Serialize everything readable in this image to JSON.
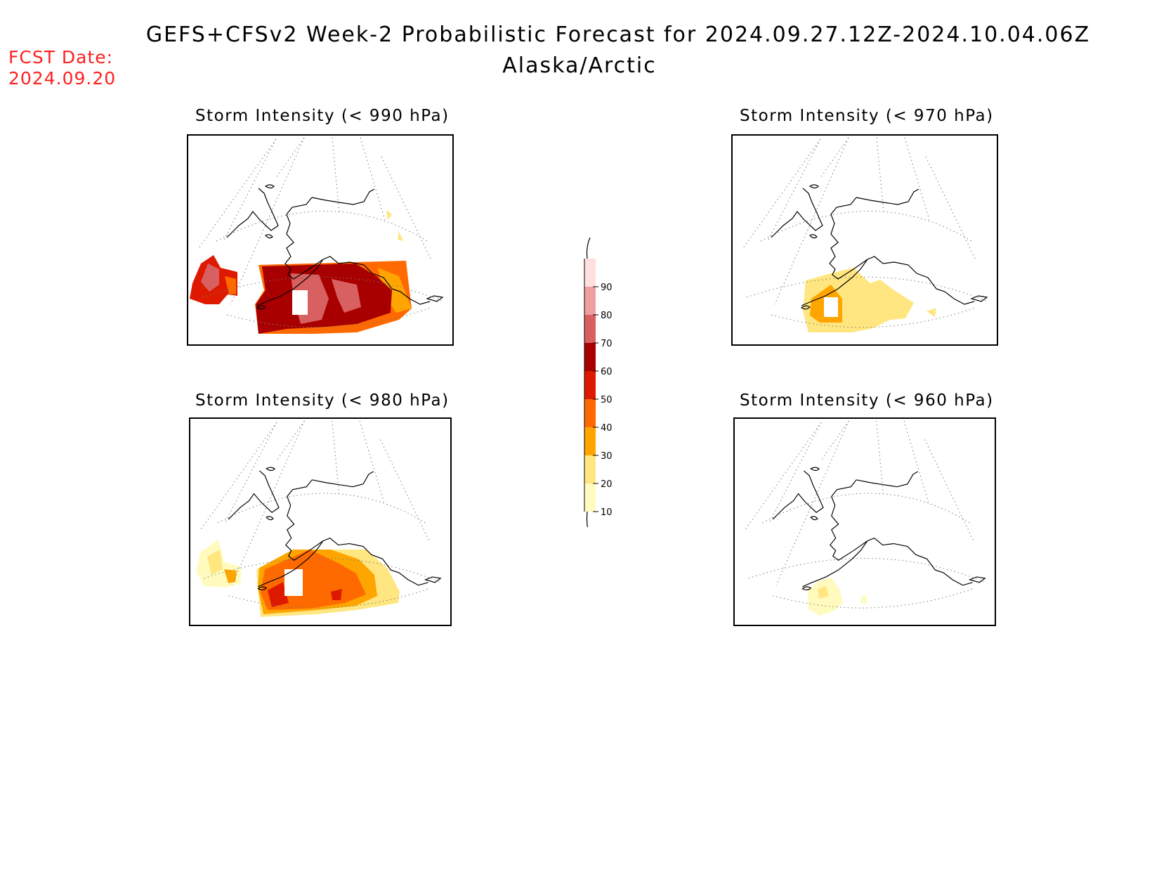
{
  "header": {
    "title": "GEFS+CFSv2 Week-2 Probabilistic Forecast for 2024.09.27.12Z-2024.10.04.06Z",
    "subtitle": "Alaska/Arctic",
    "fcst_label": "FCST Date:",
    "fcst_date": "2024.09.20",
    "fcst_color": "#ff2020"
  },
  "panels": [
    {
      "id": "p990",
      "title": "Storm Intensity (< 990 hPa)"
    },
    {
      "id": "p970",
      "title": "Storm Intensity (< 970 hPa)"
    },
    {
      "id": "p980",
      "title": "Storm Intensity (< 980 hPa)"
    },
    {
      "id": "p960",
      "title": "Storm Intensity (< 960 hPa)"
    }
  ],
  "legend": {
    "levels": [
      "10",
      "20",
      "30",
      "40",
      "50",
      "60",
      "70",
      "80",
      "90"
    ],
    "colors": [
      "#fffbbf",
      "#ffe680",
      "#ffa500",
      "#ff6a00",
      "#dd1a00",
      "#a80000",
      "#d96060",
      "#f09fa0",
      "#ffe0e0"
    ]
  }
}
